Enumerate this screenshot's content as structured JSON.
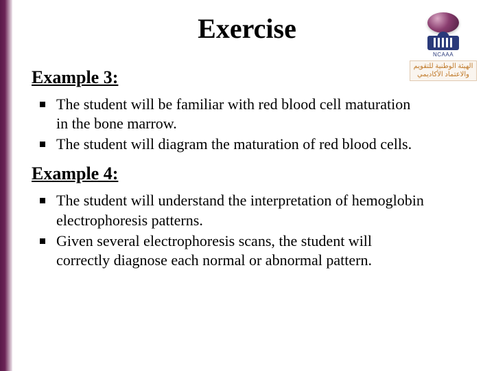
{
  "title": "Exercise",
  "logo": {
    "ncaaa_label": "NCAAA",
    "arabic_line1": "الهيئة الوطنية للتقويم",
    "arabic_line2": "والاعتماد الأكاديمي"
  },
  "colors": {
    "accent_gradient_start": "#5a1a4a",
    "accent_gradient_end": "#f0e8ee",
    "logo_blue": "#2a3a7a",
    "logo_arabic_color": "#c07a2a"
  },
  "examples": [
    {
      "heading": "Example 3:",
      "bullets": [
        "The student will be familiar with red blood cell maturation in the bone marrow.",
        "The student will diagram the maturation of red blood cells."
      ]
    },
    {
      "heading": "Example 4:",
      "bullets": [
        "The student will understand the interpretation of hemoglobin electrophoresis patterns.",
        "Given several electrophoresis scans, the student will correctly diagnose each normal or abnormal pattern."
      ]
    }
  ]
}
